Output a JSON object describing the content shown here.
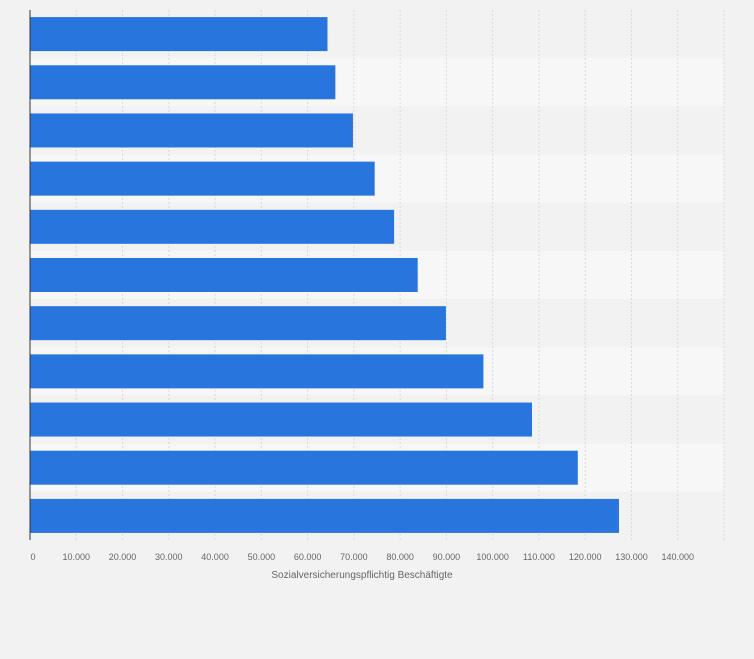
{
  "chart_data": {
    "type": "bar",
    "orientation": "horizontal",
    "categories": [
      "",
      "",
      "",
      "",
      "",
      "",
      "",
      "",
      "",
      "",
      ""
    ],
    "values": [
      64300,
      66000,
      69800,
      74500,
      78700,
      83800,
      89900,
      98000,
      108500,
      118400,
      127300
    ],
    "title": "",
    "xlabel": "Sozialversicherungspflichtig Beschäftigte",
    "ylabel": "",
    "xlim": [
      0,
      150000
    ],
    "x_ticks": [
      0,
      10000,
      20000,
      30000,
      40000,
      50000,
      60000,
      70000,
      80000,
      90000,
      100000,
      110000,
      120000,
      130000,
      140000
    ],
    "x_tick_labels": [
      "0",
      "10.000",
      "20.000",
      "30.000",
      "40.000",
      "50.000",
      "60.000",
      "70.000",
      "80.000",
      "90.000",
      "100.000",
      "110.000",
      "120.000",
      "130.000",
      "140.000"
    ],
    "grid": true,
    "legend": "none",
    "colors": {
      "bar": "#2876dd",
      "band_light": "#f7f7f7",
      "band_dark": "#f2f2f2",
      "grid": "#d9d9d9",
      "axis": "#333333",
      "text": "#666666"
    }
  }
}
